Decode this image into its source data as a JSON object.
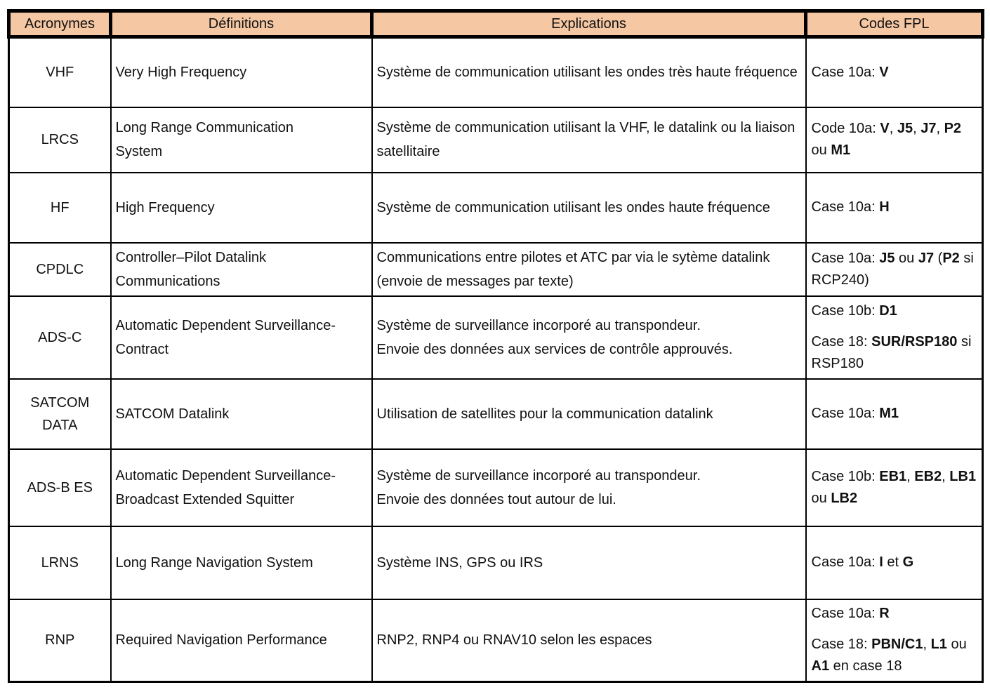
{
  "colors": {
    "header_bg": "#F5C7A3",
    "border": "#000000",
    "page_bg": "#FFFFFF",
    "text": "#111111"
  },
  "table": {
    "headers": [
      "Acronymes",
      "Définitions",
      "Explications",
      "Codes FPL"
    ],
    "rows": [
      {
        "acronym": "VHF",
        "definition_lines": [
          "Very High Frequency"
        ],
        "explanation_lines": [
          "Système de communication utilisant les ondes très haute fréquence"
        ],
        "codes_paragraphs": [
          [
            {
              "t": "Case 10a: "
            },
            {
              "t": "V",
              "b": true
            }
          ]
        ]
      },
      {
        "acronym": "LRCS",
        "definition_lines": [
          "Long Range Communication",
          "System"
        ],
        "explanation_lines": [
          "Système de communication utilisant la VHF, le datalink ou la liaison satellitaire"
        ],
        "codes_paragraphs": [
          [
            {
              "t": "Code 10a: "
            },
            {
              "t": "V",
              "b": true
            },
            {
              "t": ", "
            },
            {
              "t": "J5",
              "b": true
            },
            {
              "t": ", "
            },
            {
              "t": "J7",
              "b": true
            },
            {
              "t": ", "
            },
            {
              "t": "P2",
              "b": true
            },
            {
              "t": " ou "
            },
            {
              "t": "M1",
              "b": true
            }
          ]
        ]
      },
      {
        "acronym": "HF",
        "definition_lines": [
          "High Frequency"
        ],
        "explanation_lines": [
          "Système de communication utilisant les ondes haute fréquence"
        ],
        "codes_paragraphs": [
          [
            {
              "t": "Case 10a: "
            },
            {
              "t": "H",
              "b": true
            }
          ]
        ]
      },
      {
        "acronym": "CPDLC",
        "definition_lines": [
          "Controller–Pilot Datalink",
          "Communications"
        ],
        "explanation_lines": [
          "Communications entre pilotes et ATC par via le sytème datalink (envoie de messages par texte)"
        ],
        "codes_paragraphs": [
          [
            {
              "t": "Case 10a: "
            },
            {
              "t": "J5",
              "b": true
            },
            {
              "t": " ou "
            },
            {
              "t": "J7",
              "b": true
            },
            {
              "t": " ("
            },
            {
              "t": "P2",
              "b": true
            },
            {
              "t": " si RCP240)"
            }
          ]
        ]
      },
      {
        "acronym": "ADS-C",
        "definition_lines": [
          "Automatic Dependent Surveillance-",
          "Contract"
        ],
        "explanation_lines": [
          "Système de surveillance incorporé au transpondeur.",
          "Envoie des données aux services de contrôle approuvés."
        ],
        "codes_paragraphs": [
          [
            {
              "t": "Case 10b: "
            },
            {
              "t": "D1",
              "b": true
            }
          ],
          [
            {
              "t": "Case 18: "
            },
            {
              "t": "SUR/RSP180",
              "b": true
            },
            {
              "t": " si RSP180"
            }
          ]
        ]
      },
      {
        "acronym": "SATCOM DATA",
        "definition_lines": [
          "SATCOM Datalink"
        ],
        "explanation_lines": [
          "Utilisation de satellites pour la communication datalink"
        ],
        "codes_paragraphs": [
          [
            {
              "t": "Case 10a: "
            },
            {
              "t": "M1",
              "b": true
            }
          ]
        ]
      },
      {
        "acronym": "ADS-B ES",
        "definition_lines": [
          "Automatic Dependent Surveillance-",
          "Broadcast Extended Squitter"
        ],
        "explanation_lines": [
          "Système de surveillance incorporé au transpondeur.",
          "Envoie des données tout autour de lui."
        ],
        "codes_paragraphs": [
          [
            {
              "t": "Case 10b: "
            },
            {
              "t": "EB1",
              "b": true
            },
            {
              "t": ", "
            },
            {
              "t": "EB2",
              "b": true
            },
            {
              "t": ", "
            },
            {
              "t": "LB1",
              "b": true
            },
            {
              "t": " ou "
            },
            {
              "t": "LB2",
              "b": true
            }
          ]
        ]
      },
      {
        "acronym": "LRNS",
        "definition_lines": [
          "Long Range Navigation System"
        ],
        "explanation_lines": [
          "Système INS, GPS ou IRS"
        ],
        "codes_paragraphs": [
          [
            {
              "t": "Case 10a: "
            },
            {
              "t": "I",
              "b": true
            },
            {
              "t": " et "
            },
            {
              "t": "G",
              "b": true
            }
          ]
        ]
      },
      {
        "acronym": "RNP",
        "definition_lines": [
          "Required Navigation Performance"
        ],
        "explanation_lines": [
          "RNP2, RNP4 ou RNAV10 selon les espaces"
        ],
        "codes_paragraphs": [
          [
            {
              "t": "Case 10a: "
            },
            {
              "t": "R",
              "b": true
            }
          ],
          [
            {
              "t": "Case 18: "
            },
            {
              "t": "PBN/C1",
              "b": true
            },
            {
              "t": ", "
            },
            {
              "t": "L1",
              "b": true
            },
            {
              "t": " ou "
            },
            {
              "t": "A1",
              "b": true
            },
            {
              "t": " en case 18"
            }
          ]
        ]
      }
    ]
  }
}
